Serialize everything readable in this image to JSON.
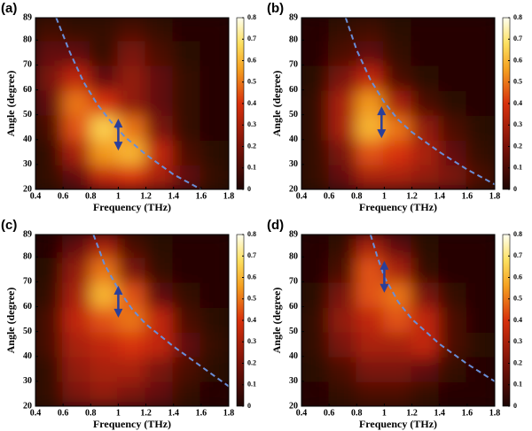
{
  "chart_data": [
    {
      "type": "heatmap",
      "label": "(a)",
      "xlabel": "Frequency (THz)",
      "ylabel": "Angle (degree)",
      "xlim": [
        0.4,
        1.8
      ],
      "ylim": [
        20,
        89
      ],
      "xticks": [
        0.4,
        0.6,
        0.8,
        1,
        1.2,
        1.4,
        1.6,
        1.8
      ],
      "yticks": [
        20,
        30,
        40,
        50,
        60,
        70,
        80,
        89
      ],
      "clim": [
        0,
        0.8
      ],
      "cticks": [
        0,
        0.1,
        0.2,
        0.3,
        0.4,
        0.5,
        0.6,
        0.7,
        0.8
      ],
      "colormap": "hot",
      "xbins": [
        0.4,
        0.6,
        0.8,
        1,
        1.2,
        1.4,
        1.6,
        1.8
      ],
      "ybins": [
        20,
        30,
        40,
        50,
        60,
        70,
        80,
        89
      ],
      "z": [
        [
          0.05,
          0.15,
          0.35,
          0.4,
          0.3,
          0.15,
          0.05
        ],
        [
          0.05,
          0.3,
          0.55,
          0.6,
          0.35,
          0.1,
          0.03
        ],
        [
          0.1,
          0.45,
          0.65,
          0.5,
          0.2,
          0.05,
          0.02
        ],
        [
          0.15,
          0.5,
          0.4,
          0.25,
          0.15,
          0.05,
          0.02
        ],
        [
          0.2,
          0.35,
          0.15,
          0.25,
          0.15,
          0.05,
          0.02
        ],
        [
          0.15,
          0.15,
          0.05,
          0.2,
          0.1,
          0.03,
          0.02
        ],
        [
          0.08,
          0.05,
          0.05,
          0.1,
          0.05,
          0.02,
          0.02
        ]
      ],
      "curve": {
        "x": [
          0.55,
          0.65,
          0.75,
          0.85,
          0.95,
          1.05,
          1.2,
          1.4,
          1.6
        ],
        "y": [
          89,
          75,
          63,
          54,
          47,
          41,
          34,
          26,
          20
        ],
        "color": "#6a8fd8"
      },
      "arrow": {
        "x": 1,
        "y": 42,
        "color": "#2a3f9a"
      }
    },
    {
      "type": "heatmap",
      "label": "(b)",
      "xlabel": "Frequency (THz)",
      "ylabel": "Angle (degree)",
      "xlim": [
        0.4,
        1.8
      ],
      "ylim": [
        20,
        89
      ],
      "xticks": [
        0.4,
        0.6,
        0.8,
        1,
        1.2,
        1.4,
        1.6,
        1.8
      ],
      "yticks": [
        20,
        30,
        40,
        50,
        60,
        70,
        80,
        89
      ],
      "clim": [
        0,
        0.8
      ],
      "cticks": [
        0,
        0.1,
        0.2,
        0.3,
        0.4,
        0.5,
        0.6,
        0.7,
        0.8
      ],
      "colormap": "hot",
      "xbins": [
        0.4,
        0.6,
        0.8,
        1,
        1.2,
        1.4,
        1.6,
        1.8
      ],
      "ybins": [
        20,
        30,
        40,
        50,
        60,
        70,
        80,
        89
      ],
      "z": [
        [
          0.05,
          0.15,
          0.3,
          0.3,
          0.25,
          0.2,
          0.1
        ],
        [
          0.05,
          0.2,
          0.45,
          0.4,
          0.3,
          0.15,
          0.05
        ],
        [
          0.05,
          0.3,
          0.6,
          0.5,
          0.25,
          0.1,
          0.03
        ],
        [
          0.05,
          0.3,
          0.55,
          0.3,
          0.1,
          0.03,
          0.02
        ],
        [
          0.03,
          0.2,
          0.35,
          0.1,
          0.03,
          0.02,
          0.02
        ],
        [
          0.02,
          0.1,
          0.15,
          0.05,
          0.02,
          0.02,
          0.02
        ],
        [
          0.02,
          0.05,
          0.08,
          0.03,
          0.02,
          0.02,
          0.02
        ]
      ],
      "curve": {
        "x": [
          0.72,
          0.8,
          0.9,
          1,
          1.1,
          1.2,
          1.4,
          1.6,
          1.8
        ],
        "y": [
          89,
          76,
          64,
          55,
          48,
          43,
          35,
          28,
          22
        ],
        "color": "#6a8fd8"
      },
      "arrow": {
        "x": 0.98,
        "y": 47,
        "color": "#2a3f9a"
      }
    },
    {
      "type": "heatmap",
      "label": "(c)",
      "xlabel": "Frequency (THz)",
      "ylabel": "Angle (degree)",
      "xlim": [
        0.4,
        1.8
      ],
      "ylim": [
        20,
        89
      ],
      "xticks": [
        0.4,
        0.6,
        0.8,
        1,
        1.2,
        1.4,
        1.6,
        1.8
      ],
      "yticks": [
        20,
        30,
        40,
        50,
        60,
        70,
        80,
        89
      ],
      "clim": [
        0,
        0.8
      ],
      "cticks": [
        0,
        0.1,
        0.2,
        0.3,
        0.4,
        0.5,
        0.6,
        0.7,
        0.8
      ],
      "colormap": "hot",
      "xbins": [
        0.4,
        0.6,
        0.8,
        1,
        1.2,
        1.4,
        1.6,
        1.8
      ],
      "ybins": [
        20,
        30,
        40,
        50,
        60,
        70,
        80,
        89
      ],
      "z": [
        [
          0.05,
          0.2,
          0.25,
          0.2,
          0.15,
          0.05,
          0.02
        ],
        [
          0.05,
          0.25,
          0.3,
          0.3,
          0.2,
          0.1,
          0.03
        ],
        [
          0.1,
          0.3,
          0.35,
          0.4,
          0.35,
          0.15,
          0.05
        ],
        [
          0.1,
          0.35,
          0.45,
          0.5,
          0.35,
          0.1,
          0.03
        ],
        [
          0.05,
          0.3,
          0.6,
          0.45,
          0.15,
          0.05,
          0.02
        ],
        [
          0.03,
          0.25,
          0.5,
          0.2,
          0.05,
          0.02,
          0.02
        ],
        [
          0.02,
          0.15,
          0.3,
          0.1,
          0.03,
          0.02,
          0.02
        ]
      ],
      "curve": {
        "x": [
          0.82,
          0.9,
          1,
          1.1,
          1.2,
          1.4,
          1.6,
          1.8
        ],
        "y": [
          89,
          77,
          67,
          59,
          53,
          44,
          36,
          28
        ],
        "color": "#6a8fd8"
      },
      "arrow": {
        "x": 1,
        "y": 62,
        "color": "#2a3f9a"
      }
    },
    {
      "type": "heatmap",
      "label": "(d)",
      "xlabel": "Frequency (THz)",
      "ylabel": "Angle (degree)",
      "xlim": [
        0.4,
        1.8
      ],
      "ylim": [
        20,
        89
      ],
      "xticks": [
        0.4,
        0.6,
        0.8,
        1,
        1.2,
        1.4,
        1.6,
        1.8
      ],
      "yticks": [
        20,
        30,
        40,
        50,
        60,
        70,
        80,
        89
      ],
      "clim": [
        0,
        0.8
      ],
      "cticks": [
        0,
        0.1,
        0.2,
        0.3,
        0.4,
        0.5,
        0.6,
        0.7,
        0.8
      ],
      "colormap": "hot",
      "xbins": [
        0.4,
        0.6,
        0.8,
        1,
        1.2,
        1.4,
        1.6,
        1.8
      ],
      "ybins": [
        20,
        30,
        40,
        50,
        60,
        70,
        80,
        89
      ],
      "z": [
        [
          0.02,
          0.05,
          0.1,
          0.1,
          0.05,
          0.02,
          0.02
        ],
        [
          0.03,
          0.1,
          0.2,
          0.2,
          0.15,
          0.05,
          0.02
        ],
        [
          0.05,
          0.2,
          0.3,
          0.3,
          0.35,
          0.1,
          0.03
        ],
        [
          0.05,
          0.25,
          0.35,
          0.45,
          0.35,
          0.1,
          0.02
        ],
        [
          0.03,
          0.2,
          0.45,
          0.5,
          0.2,
          0.05,
          0.02
        ],
        [
          0.02,
          0.1,
          0.45,
          0.3,
          0.05,
          0.02,
          0.02
        ],
        [
          0.02,
          0.05,
          0.3,
          0.15,
          0.03,
          0.02,
          0.02
        ]
      ],
      "curve": {
        "x": [
          0.9,
          0.95,
          1,
          1.1,
          1.2,
          1.4,
          1.6,
          1.8
        ],
        "y": [
          89,
          80,
          72,
          62,
          55,
          45,
          37,
          30
        ],
        "color": "#6a8fd8"
      },
      "arrow": {
        "x": 1,
        "y": 72,
        "color": "#2a3f9a"
      }
    }
  ]
}
